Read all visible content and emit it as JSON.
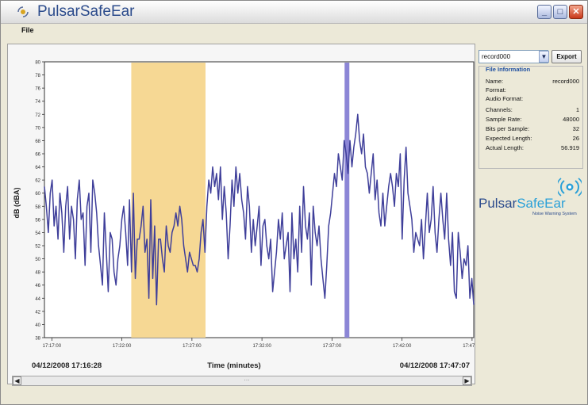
{
  "window": {
    "title": "PulsarSafeEar",
    "controls": {
      "minimize": "_",
      "maximize": "□",
      "close": "✕"
    }
  },
  "menu": {
    "items": [
      {
        "label": "File"
      }
    ]
  },
  "side": {
    "record_selected": "record000",
    "export_label": "Export",
    "info": {
      "legend": "File Information",
      "rows": [
        {
          "label": "Name:",
          "value": "record000"
        },
        {
          "label": "Format:",
          "value": ""
        },
        {
          "label": "Audio Format:",
          "value": ""
        },
        {
          "label": "Channels:",
          "value": "1"
        },
        {
          "label": "Sample Rate:",
          "value": "48000"
        },
        {
          "label": "Bits per Sample:",
          "value": "32"
        },
        {
          "label": "Expected Length:",
          "value": "26"
        },
        {
          "label": "Actual Length:",
          "value": "56.919"
        }
      ]
    },
    "logo": {
      "text_part1": "Pulsar",
      "text_part2": "SafeEar",
      "tagline": "Noise Warning System"
    }
  },
  "chart_data": {
    "type": "line",
    "title": "",
    "xlabel": "Time (minutes)",
    "ylabel": "dB (dBA)",
    "ylim": [
      38,
      80
    ],
    "yticks": [
      38,
      40,
      42,
      44,
      46,
      48,
      50,
      52,
      54,
      56,
      58,
      60,
      62,
      64,
      66,
      68,
      70,
      72,
      74,
      76,
      78,
      80
    ],
    "x_tick_labels": [
      "17:17:00",
      "17:22:00",
      "17:27:00",
      "17:32:00",
      "17:37:00",
      "17:42:00",
      "17:47:00"
    ],
    "start_label": "04/12/2008 17:16:28",
    "end_label": "04/12/2008 17:47:07",
    "x_range_minutes": [
      0,
      30.65
    ],
    "highlight_region": {
      "from_minutes": 6.2,
      "to_minutes": 11.5
    },
    "marker_line": {
      "at_minutes": 21.6
    },
    "colors": {
      "line": "#3f3f9a",
      "highlight": "#f6d894",
      "marker": "#8c86d6"
    },
    "series": [
      {
        "values": [
          61,
          58,
          54,
          60,
          62,
          55,
          58,
          53,
          60,
          57,
          51,
          58,
          61,
          53,
          58,
          56,
          50,
          59,
          62,
          56,
          57,
          49,
          58,
          60,
          51,
          62,
          60,
          57,
          52,
          49,
          46,
          57,
          51,
          45,
          54,
          53,
          48,
          46,
          50,
          52,
          56,
          58,
          54,
          49,
          59,
          48,
          60,
          47,
          53,
          53,
          55,
          58,
          51,
          53,
          44,
          59,
          47,
          55,
          43,
          53,
          53,
          50,
          48,
          55,
          52,
          51,
          54,
          55,
          57,
          55,
          58,
          56,
          52,
          50,
          48,
          51,
          50,
          49,
          49,
          48,
          50,
          54,
          56,
          51,
          58,
          62,
          60,
          64,
          61,
          63,
          59,
          64,
          56,
          61,
          57,
          50,
          55,
          62,
          58,
          64,
          60,
          63,
          59,
          57,
          53,
          61,
          58,
          51,
          56,
          52,
          55,
          58,
          49,
          55,
          56,
          52,
          50,
          53,
          45,
          48,
          51,
          56,
          53,
          57,
          50,
          52,
          54,
          45,
          57,
          50,
          53,
          48,
          58,
          51,
          61,
          55,
          53,
          57,
          46,
          58,
          54,
          52,
          55,
          50,
          47,
          44,
          49,
          55,
          57,
          60,
          63,
          61,
          66,
          64,
          62,
          68,
          66,
          63,
          68,
          64,
          67,
          69,
          72,
          68,
          66,
          69,
          64,
          63,
          60,
          63,
          66,
          59,
          62,
          57,
          55,
          60,
          55,
          58,
          61,
          63,
          61,
          58,
          63,
          61,
          66,
          53,
          62,
          67,
          60,
          58,
          56,
          51,
          54,
          53,
          52,
          56,
          50,
          55,
          60,
          54,
          56,
          61,
          54,
          51,
          56,
          60,
          56,
          53,
          60,
          53,
          49,
          54,
          45,
          44,
          54,
          51,
          47,
          50,
          49,
          52,
          44,
          47,
          43
        ]
      }
    ]
  }
}
